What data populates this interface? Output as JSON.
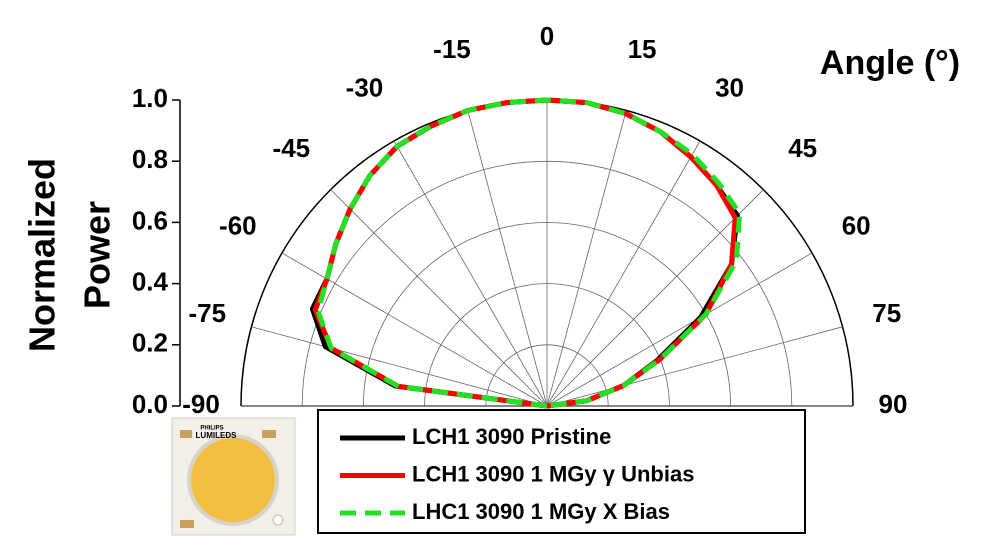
{
  "chart_data": {
    "type": "polar",
    "angle_label": "Angle (°)",
    "ylabel": [
      "Normalized",
      "Power"
    ],
    "x": [
      -90,
      -82.5,
      -75,
      -67.5,
      -60,
      -52.5,
      -45,
      -37.5,
      -30,
      -22.5,
      -15,
      -7.5,
      0,
      7.5,
      15,
      22.5,
      30,
      37.5,
      45,
      52.5,
      60,
      67.5,
      75,
      82.5,
      90
    ],
    "series": [
      {
        "name": "LCH1 3090 Pristine",
        "color": "#000000",
        "linestyle": "solid",
        "values": [
          0,
          0.5,
          0.75,
          0.83,
          0.83,
          0.87,
          0.91,
          0.95,
          0.98,
          0.99,
          1.0,
          1.0,
          1.0,
          1.0,
          0.99,
          0.97,
          0.94,
          0.91,
          0.88,
          0.76,
          0.58,
          0.39,
          0.26,
          0.13,
          0
        ]
      },
      {
        "name": "LCH1 3090 1 MGy γ Unbias",
        "color": "#ff0000",
        "linestyle": "solid",
        "values": [
          0,
          0.49,
          0.73,
          0.82,
          0.83,
          0.87,
          0.91,
          0.95,
          0.98,
          0.99,
          1.0,
          1.0,
          1.0,
          1.0,
          0.99,
          0.97,
          0.94,
          0.91,
          0.87,
          0.76,
          0.6,
          0.4,
          0.26,
          0.13,
          0
        ]
      },
      {
        "name": "LHC1 3090 1 MGy X Bias",
        "color": "#22e022",
        "linestyle": "dashed",
        "values": [
          0,
          0.49,
          0.73,
          0.81,
          0.83,
          0.87,
          0.91,
          0.95,
          0.98,
          0.99,
          1.0,
          1.0,
          1.0,
          1.0,
          0.99,
          0.97,
          0.95,
          0.92,
          0.89,
          0.78,
          0.6,
          0.4,
          0.26,
          0.13,
          0
        ]
      }
    ],
    "xlim": [
      -90,
      90
    ],
    "xticks": [
      -90,
      -75,
      -60,
      -45,
      -30,
      -15,
      0,
      15,
      30,
      45,
      60,
      75,
      90
    ],
    "ylim": [
      0,
      1.0
    ],
    "yticks": [
      {
        "value": 0,
        "label": "0.0"
      },
      {
        "value": 0.2,
        "label": "0.2"
      },
      {
        "value": 0.4,
        "label": "0.4"
      },
      {
        "value": 0.6,
        "label": "0.6"
      },
      {
        "value": 0.8,
        "label": "0.8"
      },
      {
        "value": 1.0,
        "label": "1.0"
      }
    ],
    "grid": true,
    "legend": "bottom",
    "image_labels": [
      "PHILIPS",
      "LUMILEDS"
    ]
  }
}
